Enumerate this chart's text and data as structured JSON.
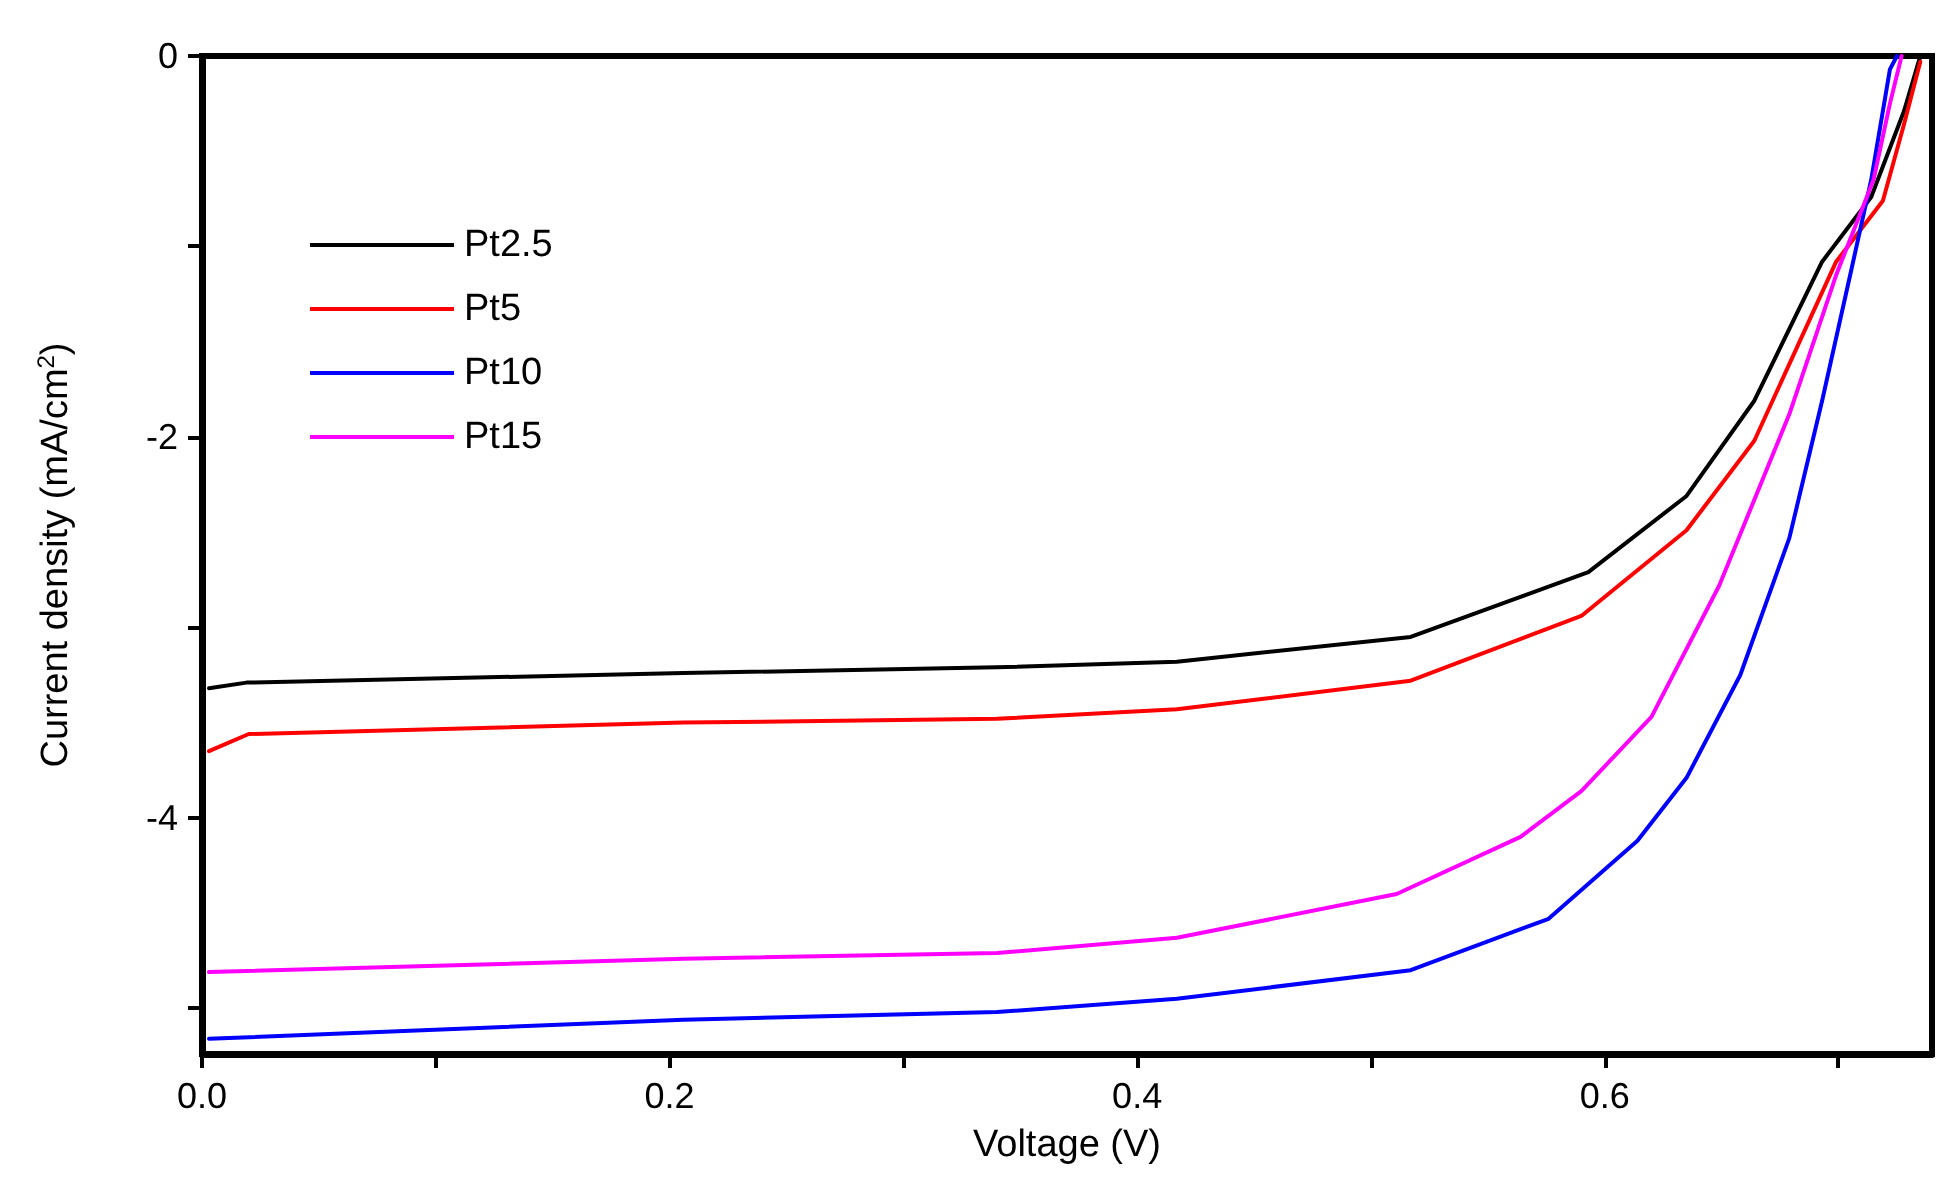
{
  "chart_data": {
    "type": "line",
    "xlabel": "Voltage (V)",
    "ylabel": "Current density (mA/cm$^{2}$)",
    "xlim": [
      0,
      0.74
    ],
    "ylim": [
      -5.24,
      0
    ],
    "xticks": [
      {
        "value": 0,
        "label": "0.0"
      },
      {
        "value": 0.1,
        "label": null
      },
      {
        "value": 0.2,
        "label": "0.2"
      },
      {
        "value": 0.3,
        "label": null
      },
      {
        "value": 0.4,
        "label": "0.4"
      },
      {
        "value": 0.5,
        "label": null
      },
      {
        "value": 0.6,
        "label": "0.6"
      },
      {
        "value": 0.7,
        "label": null
      }
    ],
    "yticks": [
      0,
      {
        "value": -1,
        "label": null
      },
      -2,
      {
        "value": -3,
        "label": null
      },
      -4,
      {
        "value": -5,
        "label": null
      }
    ],
    "legend": "top left",
    "grid": false,
    "series": [
      {
        "name": "Pt2.5",
        "color": "#000000",
        "x": [
          0.003,
          0.019,
          0.206,
          0.34,
          0.417,
          0.517,
          0.593,
          0.635,
          0.664,
          0.693,
          0.714,
          0.728,
          0.735
        ],
        "values": [
          -3.32,
          -3.29,
          -3.24,
          -3.21,
          -3.18,
          -3.05,
          -2.71,
          -2.31,
          -1.81,
          -1.08,
          -0.74,
          -0.29,
          0
        ]
      },
      {
        "name": "Pt5",
        "color": "#ff0000",
        "x": [
          0.003,
          0.02,
          0.206,
          0.34,
          0.417,
          0.517,
          0.59,
          0.635,
          0.664,
          0.699,
          0.719,
          0.728,
          0.735
        ],
        "values": [
          -3.65,
          -3.56,
          -3.5,
          -3.48,
          -3.43,
          -3.28,
          -2.94,
          -2.49,
          -2.02,
          -1.08,
          -0.76,
          -0.36,
          -0.03
        ]
      },
      {
        "name": "Pt10",
        "color": "#0000ff",
        "x": [
          0.003,
          0.206,
          0.34,
          0.417,
          0.517,
          0.576,
          0.614,
          0.635,
          0.658,
          0.679,
          0.693,
          0.705,
          0.714,
          0.722,
          0.725
        ],
        "values": [
          -5.16,
          -5.06,
          -5.02,
          -4.95,
          -4.8,
          -4.53,
          -4.12,
          -3.79,
          -3.25,
          -2.53,
          -1.81,
          -1.15,
          -0.65,
          -0.07,
          0
        ]
      },
      {
        "name": "Pt15",
        "color": "#ff00ff",
        "x": [
          0.003,
          0.206,
          0.34,
          0.417,
          0.511,
          0.564,
          0.59,
          0.62,
          0.649,
          0.679,
          0.699,
          0.715,
          0.722,
          0.727
        ],
        "values": [
          -4.81,
          -4.74,
          -4.71,
          -4.63,
          -4.4,
          -4.1,
          -3.86,
          -3.47,
          -2.78,
          -1.88,
          -1.15,
          -0.65,
          -0.25,
          0
        ]
      }
    ]
  }
}
